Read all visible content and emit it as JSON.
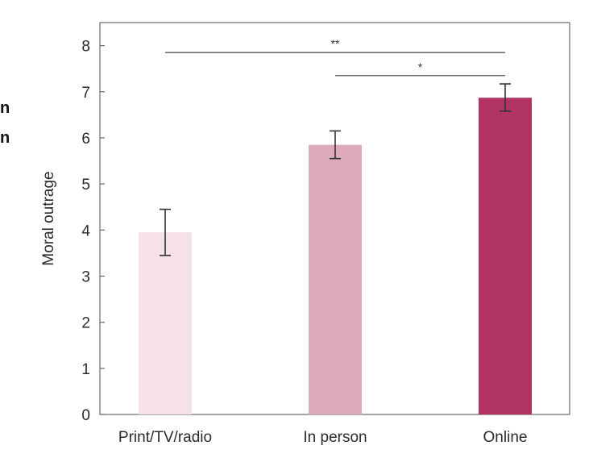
{
  "side_fragments": [
    "n",
    "n"
  ],
  "chart_data": {
    "type": "bar",
    "title": "",
    "xlabel": "",
    "ylabel": "Moral outrage",
    "ylim": [
      0,
      8.5
    ],
    "yticks": [
      0,
      1,
      2,
      3,
      4,
      5,
      6,
      7,
      8
    ],
    "categories": [
      "Print/TV/radio",
      "In person",
      "Online"
    ],
    "values": [
      3.95,
      5.85,
      6.87
    ],
    "error_low": [
      3.45,
      5.55,
      6.58
    ],
    "error_high": [
      4.45,
      6.15,
      7.17
    ],
    "colors": [
      "#f5e1e7",
      "#ddaabb",
      "#b03363"
    ],
    "grid": false,
    "significance": [
      {
        "from": 0,
        "to": 2,
        "label": "**",
        "y": 7.85
      },
      {
        "from": 1,
        "to": 2,
        "label": "*",
        "y": 7.35
      }
    ]
  }
}
